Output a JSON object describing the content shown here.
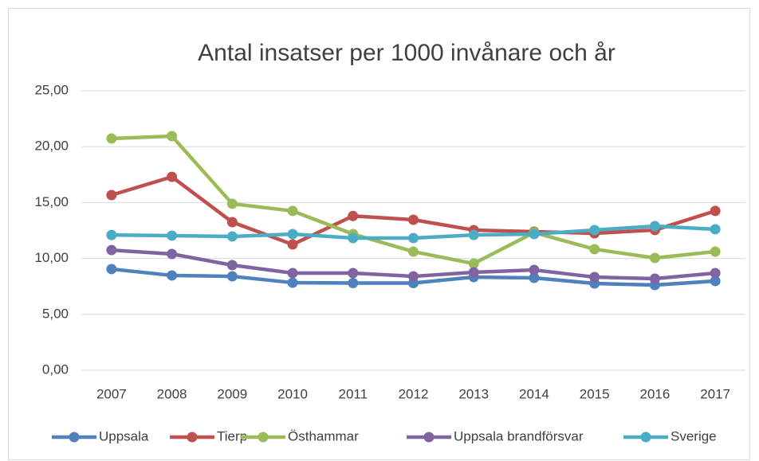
{
  "chart_data": {
    "type": "line",
    "title": "Antal insatser per 1000 invånare och år",
    "categories": [
      "2007",
      "2008",
      "2009",
      "2010",
      "2011",
      "2012",
      "2013",
      "2014",
      "2015",
      "2016",
      "2017"
    ],
    "series": [
      {
        "name": "Uppsala",
        "color": "#4f81bd",
        "values": [
          9.05,
          8.48,
          8.4,
          7.83,
          7.8,
          7.8,
          8.33,
          8.26,
          7.76,
          7.62,
          7.98
        ]
      },
      {
        "name": "Tierp",
        "color": "#c0504d",
        "values": [
          15.67,
          17.3,
          13.25,
          11.25,
          13.8,
          13.46,
          12.54,
          12.39,
          12.25,
          12.54,
          14.25
        ]
      },
      {
        "name": "Östhammar",
        "color": "#9bbb59",
        "values": [
          20.73,
          20.94,
          14.89,
          14.25,
          12.18,
          10.61,
          9.54,
          12.32,
          10.83,
          10.04,
          10.61
        ]
      },
      {
        "name": "Uppsala brandförsvar",
        "color": "#8064a2",
        "values": [
          10.75,
          10.4,
          9.4,
          8.69,
          8.69,
          8.4,
          8.76,
          8.97,
          8.33,
          8.19,
          8.69
        ]
      },
      {
        "name": "Sverige",
        "color": "#4bacc6",
        "values": [
          12.1,
          12.04,
          11.97,
          12.18,
          11.82,
          11.82,
          12.1,
          12.18,
          12.54,
          12.89,
          12.61
        ]
      }
    ],
    "ylim": [
      0,
      25
    ],
    "yticks": [
      {
        "value": 0,
        "label": "0,00"
      },
      {
        "value": 5,
        "label": "5,00"
      },
      {
        "value": 10,
        "label": "10,00"
      },
      {
        "value": 15,
        "label": "15,00"
      },
      {
        "value": 20,
        "label": "20,00"
      },
      {
        "value": 25,
        "label": "25,00"
      }
    ],
    "grid": true,
    "legend": "bottom"
  }
}
